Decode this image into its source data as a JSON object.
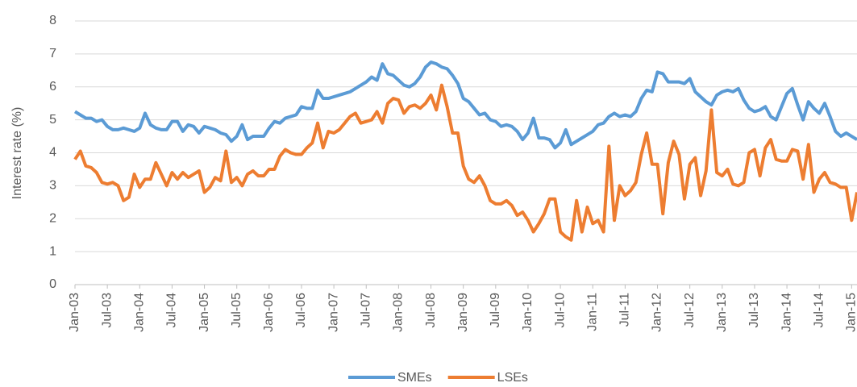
{
  "chart_data": {
    "type": "line",
    "y_label": "Interest rate (%)",
    "categories": [
      "Jan-03",
      null,
      null,
      null,
      null,
      null,
      "Jul-03",
      null,
      null,
      null,
      null,
      null,
      "Jan-04",
      null,
      null,
      null,
      null,
      null,
      "Jul-04",
      null,
      null,
      null,
      null,
      null,
      "Jan-05",
      null,
      null,
      null,
      null,
      null,
      "Jul-05",
      null,
      null,
      null,
      null,
      null,
      "Jan-06",
      null,
      null,
      null,
      null,
      null,
      "Jul-06",
      null,
      null,
      null,
      null,
      null,
      "Jan-07",
      null,
      null,
      null,
      null,
      null,
      "Jul-07",
      null,
      null,
      null,
      null,
      null,
      "Jan-08",
      null,
      null,
      null,
      null,
      null,
      "Jul-08",
      null,
      null,
      null,
      null,
      null,
      "Jan-09",
      null,
      null,
      null,
      null,
      null,
      "Jul-09",
      null,
      null,
      null,
      null,
      null,
      "Jan-10",
      null,
      null,
      null,
      null,
      null,
      "Jul-10",
      null,
      null,
      null,
      null,
      null,
      "Jan-11",
      null,
      null,
      null,
      null,
      null,
      "Jul-11",
      null,
      null,
      null,
      null,
      null,
      "Jan-12",
      null,
      null,
      null,
      null,
      null,
      "Jul-12",
      null,
      null,
      null,
      null,
      null,
      "Jan-13",
      null,
      null,
      null,
      null,
      null,
      "Jul-13",
      null,
      null,
      null,
      null,
      null,
      "Jan-14",
      null,
      null,
      null,
      null,
      null,
      "Jul-14",
      null,
      null,
      null,
      null,
      null,
      "Jan-15",
      null
    ],
    "series": [
      {
        "name": "SMEs",
        "color": "#5b9bd5",
        "values": [
          5.25,
          5.15,
          5.05,
          5.05,
          4.95,
          5.0,
          4.8,
          4.7,
          4.7,
          4.75,
          4.7,
          4.65,
          4.75,
          5.2,
          4.85,
          4.75,
          4.7,
          4.7,
          4.95,
          4.95,
          4.65,
          4.85,
          4.8,
          4.6,
          4.8,
          4.75,
          4.7,
          4.6,
          4.55,
          4.35,
          4.5,
          4.85,
          4.4,
          4.5,
          4.5,
          4.5,
          4.75,
          4.95,
          4.9,
          5.05,
          5.1,
          5.15,
          5.4,
          5.35,
          5.35,
          5.9,
          5.65,
          5.65,
          5.7,
          5.75,
          5.8,
          5.85,
          5.95,
          6.05,
          6.15,
          6.3,
          6.2,
          6.7,
          6.4,
          6.35,
          6.2,
          6.05,
          6.0,
          6.1,
          6.3,
          6.6,
          6.75,
          6.7,
          6.6,
          6.55,
          6.35,
          6.1,
          5.65,
          5.55,
          5.35,
          5.15,
          5.2,
          5.0,
          4.95,
          4.8,
          4.85,
          4.8,
          4.65,
          4.4,
          4.6,
          5.05,
          4.45,
          4.45,
          4.4,
          4.15,
          4.3,
          4.7,
          4.25,
          4.35,
          4.45,
          4.55,
          4.65,
          4.85,
          4.9,
          5.1,
          5.2,
          5.1,
          5.15,
          5.1,
          5.25,
          5.65,
          5.9,
          5.85,
          6.45,
          6.4,
          6.15,
          6.15,
          6.15,
          6.1,
          6.25,
          5.85,
          5.7,
          5.55,
          5.45,
          5.75,
          5.85,
          5.9,
          5.85,
          5.95,
          5.6,
          5.35,
          5.25,
          5.3,
          5.4,
          5.1,
          5.0,
          5.4,
          5.8,
          5.95,
          5.45,
          5.0,
          5.55,
          5.35,
          5.2,
          5.5,
          5.1,
          4.65,
          4.5,
          4.6,
          4.5,
          4.4
        ]
      },
      {
        "name": "LSEs",
        "color": "#ed7d31",
        "values": [
          3.8,
          4.05,
          3.6,
          3.55,
          3.4,
          3.1,
          3.05,
          3.1,
          3.0,
          2.55,
          2.65,
          3.35,
          2.95,
          3.2,
          3.2,
          3.7,
          3.35,
          3.0,
          3.4,
          3.2,
          3.4,
          3.25,
          3.35,
          3.45,
          2.8,
          2.95,
          3.25,
          3.15,
          4.05,
          3.1,
          3.25,
          3.0,
          3.35,
          3.45,
          3.3,
          3.3,
          3.5,
          3.5,
          3.9,
          4.1,
          4.0,
          3.95,
          3.95,
          4.15,
          4.3,
          4.9,
          4.15,
          4.65,
          4.6,
          4.7,
          4.9,
          5.1,
          5.2,
          4.9,
          4.95,
          5.0,
          5.25,
          4.9,
          5.5,
          5.65,
          5.6,
          5.2,
          5.4,
          5.45,
          5.35,
          5.5,
          5.75,
          5.3,
          6.05,
          5.4,
          4.6,
          4.6,
          3.6,
          3.2,
          3.1,
          3.3,
          3.0,
          2.55,
          2.45,
          2.45,
          2.55,
          2.4,
          2.1,
          2.2,
          1.95,
          1.6,
          1.85,
          2.15,
          2.6,
          2.6,
          1.6,
          1.45,
          1.35,
          2.55,
          1.6,
          2.35,
          1.85,
          1.95,
          1.6,
          4.2,
          1.95,
          3.0,
          2.7,
          2.85,
          3.1,
          3.95,
          4.6,
          3.65,
          3.65,
          2.15,
          3.7,
          4.35,
          3.95,
          2.6,
          3.65,
          3.85,
          2.7,
          3.45,
          5.3,
          3.4,
          3.3,
          3.5,
          3.05,
          3.0,
          3.1,
          4.0,
          4.1,
          3.3,
          4.15,
          4.4,
          3.8,
          3.75,
          3.75,
          4.1,
          4.05,
          3.2,
          4.25,
          2.8,
          3.2,
          3.4,
          3.1,
          3.05,
          2.95,
          2.95,
          1.95,
          2.8
        ]
      }
    ],
    "ylim": [
      0,
      8
    ],
    "yticks": [
      0,
      1,
      2,
      3,
      4,
      5,
      6,
      7,
      8
    ],
    "grid": true,
    "legend": "bottom"
  }
}
